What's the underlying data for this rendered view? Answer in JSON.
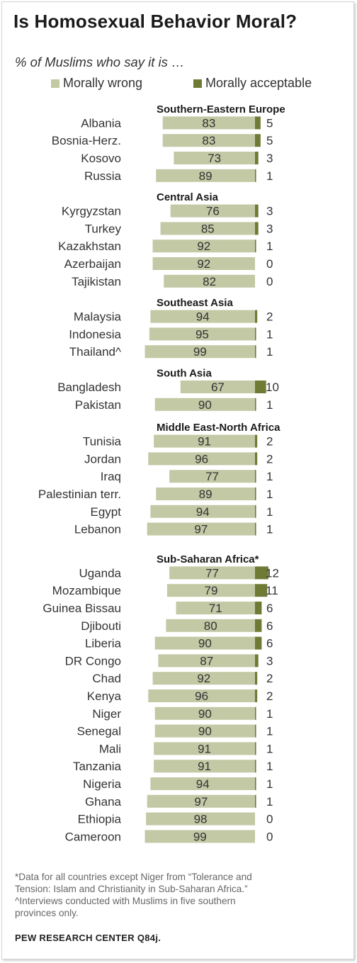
{
  "title": "Is Homosexual Behavior Moral?",
  "subtitle": "% of Muslims who say it is …",
  "legend": [
    {
      "label": "Morally wrong",
      "color": "#c3c8a5"
    },
    {
      "label": "Morally acceptable",
      "color": "#6f7a35"
    }
  ],
  "chart_data": {
    "type": "bar",
    "orientation": "horizontal",
    "stacked": "diverging",
    "series_names": [
      "Morally wrong",
      "Morally acceptable"
    ],
    "colors": {
      "wrong": "#c3c8a5",
      "acceptable": "#6f7a35"
    },
    "groups": [
      {
        "heading": "Southern-Eastern Europe",
        "rows": [
          {
            "country": "Albania",
            "wrong": 83,
            "acceptable": 5
          },
          {
            "country": "Bosnia-Herz.",
            "wrong": 83,
            "acceptable": 5
          },
          {
            "country": "Kosovo",
            "wrong": 73,
            "acceptable": 3
          },
          {
            "country": "Russia",
            "wrong": 89,
            "acceptable": 1
          }
        ]
      },
      {
        "heading": "Central Asia",
        "rows": [
          {
            "country": "Kyrgyzstan",
            "wrong": 76,
            "acceptable": 3
          },
          {
            "country": "Turkey",
            "wrong": 85,
            "acceptable": 3
          },
          {
            "country": "Kazakhstan",
            "wrong": 92,
            "acceptable": 1
          },
          {
            "country": "Azerbaijan",
            "wrong": 92,
            "acceptable": 0
          },
          {
            "country": "Tajikistan",
            "wrong": 82,
            "acceptable": 0
          }
        ]
      },
      {
        "heading": "Southeast Asia",
        "rows": [
          {
            "country": "Malaysia",
            "wrong": 94,
            "acceptable": 2
          },
          {
            "country": "Indonesia",
            "wrong": 95,
            "acceptable": 1
          },
          {
            "country": "Thailand^",
            "wrong": 99,
            "acceptable": 1
          }
        ]
      },
      {
        "heading": "South Asia",
        "rows": [
          {
            "country": "Bangladesh",
            "wrong": 67,
            "acceptable": 10
          },
          {
            "country": "Pakistan",
            "wrong": 90,
            "acceptable": 1
          }
        ]
      },
      {
        "heading": "Middle East-North Africa",
        "rows": [
          {
            "country": "Tunisia",
            "wrong": 91,
            "acceptable": 2
          },
          {
            "country": "Jordan",
            "wrong": 96,
            "acceptable": 2
          },
          {
            "country": "Iraq",
            "wrong": 77,
            "acceptable": 1
          },
          {
            "country": "Palestinian terr.",
            "wrong": 89,
            "acceptable": 1
          },
          {
            "country": "Egypt",
            "wrong": 94,
            "acceptable": 1
          },
          {
            "country": "Lebanon",
            "wrong": 97,
            "acceptable": 1
          }
        ]
      },
      {
        "heading": "Sub-Saharan Africa*",
        "rows": [
          {
            "country": "Uganda",
            "wrong": 77,
            "acceptable": 12
          },
          {
            "country": "Mozambique",
            "wrong": 79,
            "acceptable": 11
          },
          {
            "country": "Guinea Bissau",
            "wrong": 71,
            "acceptable": 6
          },
          {
            "country": "Djibouti",
            "wrong": 80,
            "acceptable": 6
          },
          {
            "country": "Liberia",
            "wrong": 90,
            "acceptable": 6
          },
          {
            "country": "DR Congo",
            "wrong": 87,
            "acceptable": 3
          },
          {
            "country": "Chad",
            "wrong": 92,
            "acceptable": 2
          },
          {
            "country": "Kenya",
            "wrong": 96,
            "acceptable": 2
          },
          {
            "country": "Niger",
            "wrong": 90,
            "acceptable": 1
          },
          {
            "country": "Senegal",
            "wrong": 90,
            "acceptable": 1
          },
          {
            "country": "Mali",
            "wrong": 91,
            "acceptable": 1
          },
          {
            "country": "Tanzania",
            "wrong": 91,
            "acceptable": 1
          },
          {
            "country": "Nigeria",
            "wrong": 94,
            "acceptable": 1
          },
          {
            "country": "Ghana",
            "wrong": 97,
            "acceptable": 1
          },
          {
            "country": "Ethiopia",
            "wrong": 98,
            "acceptable": 0
          },
          {
            "country": "Cameroon",
            "wrong": 99,
            "acceptable": 0
          }
        ]
      }
    ]
  },
  "footnotes": [
    "*Data for all countries except Niger from “Tolerance and",
    "Tension: Islam and Christianity in Sub-Saharan Africa.”",
    "^Interviews conducted with Muslims in five southern",
    "provinces only."
  ],
  "source": "PEW RESEARCH CENTER Q84j."
}
